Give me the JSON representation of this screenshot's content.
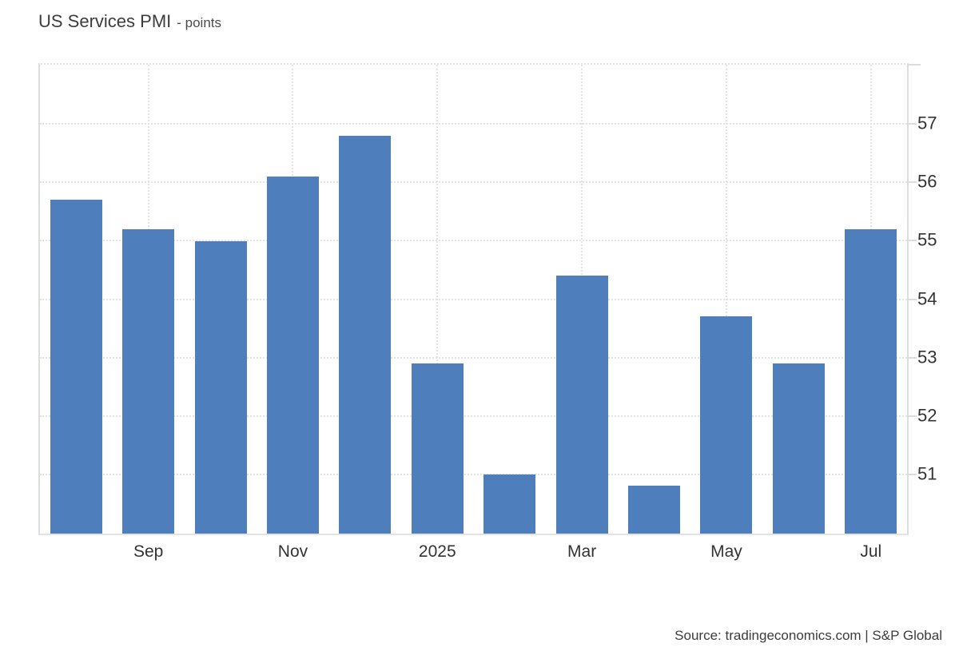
{
  "header": {
    "title": "US Services PMI",
    "subtitle": "- points"
  },
  "footer": {
    "source": "Source: tradingeconomics.com | S&P Global"
  },
  "chart_data": {
    "type": "bar",
    "title": "US Services PMI",
    "unit": "points",
    "categories": [
      "Aug 2024",
      "Sep 2024",
      "Oct 2024",
      "Nov 2024",
      "Dec 2024",
      "Jan 2025",
      "Feb 2025",
      "Mar 2025",
      "Apr 2025",
      "May 2025",
      "Jun 2025",
      "Jul 2025"
    ],
    "values": [
      55.7,
      55.2,
      55.0,
      56.1,
      56.8,
      52.9,
      51.0,
      54.4,
      50.8,
      53.7,
      52.9,
      55.2
    ],
    "x_tick_labels": [
      "",
      "Sep",
      "",
      "Nov",
      "",
      "2025",
      "",
      "Mar",
      "",
      "May",
      "",
      "Jul"
    ],
    "yticks": [
      51,
      52,
      53,
      54,
      55,
      56,
      57
    ],
    "ylim": [
      49.98,
      58.02
    ],
    "grid": true,
    "legend": false,
    "ylabel_side": "right",
    "bar_color": "#4E7FBC",
    "grid_color": "#e2e2e2",
    "axis_color": "#dcdcdc",
    "label_color": "#333333"
  }
}
